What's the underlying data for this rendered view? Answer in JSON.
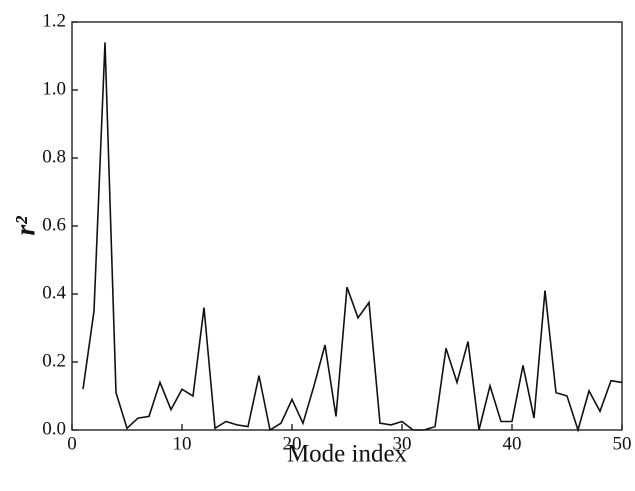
{
  "chart_data": {
    "type": "line",
    "x_label": "Mode index",
    "y_label": "r²",
    "x": [
      1,
      2,
      3,
      4,
      5,
      6,
      7,
      8,
      9,
      10,
      11,
      12,
      13,
      14,
      15,
      16,
      17,
      18,
      19,
      20,
      21,
      22,
      23,
      24,
      25,
      26,
      27,
      28,
      29,
      30,
      31,
      32,
      33,
      34,
      35,
      36,
      37,
      38,
      39,
      40,
      41,
      42,
      43,
      44,
      45,
      46,
      47,
      48,
      49,
      50
    ],
    "series": [
      {
        "color": "#111111",
        "values": [
          0.12,
          0.35,
          1.14,
          0.11,
          0.005,
          0.035,
          0.04,
          0.14,
          0.06,
          0.12,
          0.1,
          0.36,
          0.005,
          0.025,
          0.015,
          0.01,
          0.16,
          0.0,
          0.02,
          0.09,
          0.02,
          0.13,
          0.25,
          0.04,
          0.42,
          0.33,
          0.375,
          0.02,
          0.015,
          0.025,
          0.0,
          0.0,
          0.01,
          0.24,
          0.14,
          0.26,
          0.0,
          0.13,
          0.025,
          0.025,
          0.19,
          0.035,
          0.41,
          0.11,
          0.1,
          0.0,
          0.115,
          0.055,
          0.145,
          0.14
        ]
      }
    ],
    "xlim": [
      0,
      50
    ],
    "xticks": [
      0,
      10,
      20,
      30,
      40,
      50
    ],
    "ylim": [
      0,
      1.2
    ],
    "yticks": [
      {
        "value": 0,
        "label": "0.0"
      },
      {
        "value": 0.2,
        "label": "0.2"
      },
      {
        "value": 0.4,
        "label": "0.4"
      },
      {
        "value": 0.6,
        "label": "0.6"
      },
      {
        "value": 0.8,
        "label": "0.8"
      },
      {
        "value": 1.0,
        "label": "1.0"
      },
      {
        "value": 1.2,
        "label": "1.2"
      }
    ]
  }
}
